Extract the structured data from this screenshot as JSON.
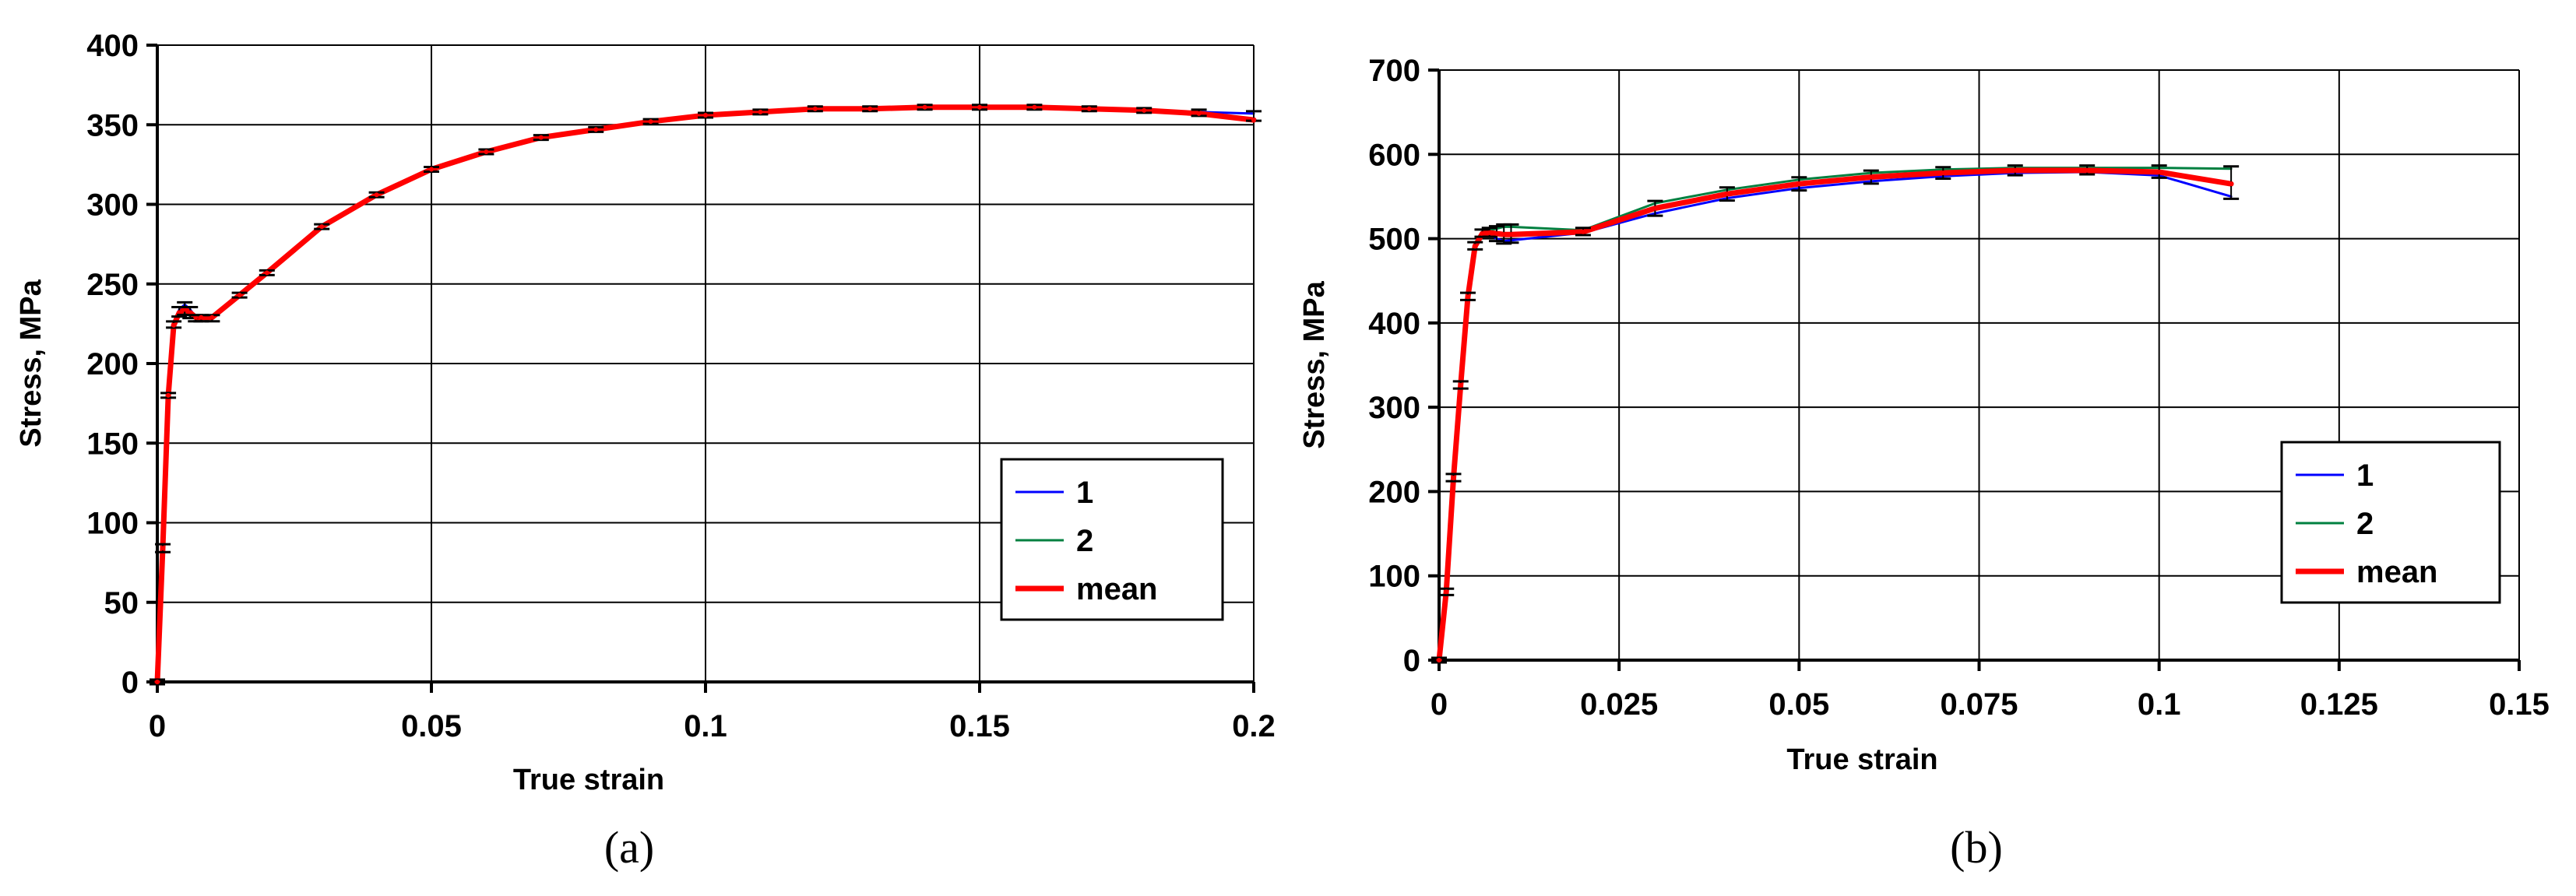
{
  "chart_data": [
    {
      "type": "line",
      "panel_label": "(a)",
      "xlabel": "True strain",
      "ylabel": "Stress, MPa",
      "xlim": [
        0,
        0.2
      ],
      "ylim": [
        0,
        400
      ],
      "x_ticks": [
        0,
        0.05,
        0.1,
        0.15,
        0.2
      ],
      "x_tick_labels": [
        "0",
        "0.05",
        "0.1",
        "0.15",
        "0.2"
      ],
      "y_ticks": [
        0,
        50,
        100,
        150,
        200,
        250,
        300,
        350,
        400
      ],
      "y_tick_labels": [
        "0",
        "50",
        "100",
        "150",
        "200",
        "250",
        "300",
        "350",
        "400"
      ],
      "grid": true,
      "legend_position": "right",
      "series": [
        {
          "name": "1",
          "color": "#0000ff",
          "x": [
            0,
            0.001,
            0.002,
            0.003,
            0.004,
            0.005,
            0.006,
            0.007,
            0.008,
            0.01,
            0.015,
            0.02,
            0.03,
            0.04,
            0.05,
            0.06,
            0.07,
            0.08,
            0.09,
            0.1,
            0.11,
            0.12,
            0.13,
            0.14,
            0.15,
            0.16,
            0.17,
            0.18,
            0.19,
            0.2
          ],
          "y": [
            0,
            85,
            180,
            225,
            234,
            237,
            234,
            229,
            229,
            229,
            243,
            257,
            286,
            306,
            322,
            333,
            342,
            347,
            352,
            356,
            358,
            360,
            360,
            361,
            361,
            361,
            360,
            359,
            358,
            357
          ]
        },
        {
          "name": "2",
          "color": "#008040",
          "x": [
            0,
            0.001,
            0.002,
            0.003,
            0.004,
            0.005,
            0.006,
            0.007,
            0.008,
            0.01,
            0.015,
            0.02,
            0.03,
            0.04,
            0.05,
            0.06,
            0.07,
            0.08,
            0.09,
            0.1,
            0.11,
            0.12,
            0.13,
            0.14,
            0.15,
            0.16,
            0.17,
            0.18,
            0.19,
            0.2
          ],
          "y": [
            0,
            83,
            180,
            224,
            231,
            232,
            230,
            228,
            228,
            228,
            243,
            257,
            286,
            306,
            322,
            333,
            342,
            347,
            352,
            356,
            358,
            360,
            360,
            361,
            361,
            361,
            360,
            359,
            357,
            354
          ]
        },
        {
          "name": "mean",
          "color": "#ff0000",
          "x": [
            0,
            0.001,
            0.002,
            0.003,
            0.004,
            0.005,
            0.006,
            0.007,
            0.008,
            0.01,
            0.015,
            0.02,
            0.03,
            0.04,
            0.05,
            0.06,
            0.07,
            0.08,
            0.09,
            0.1,
            0.11,
            0.12,
            0.13,
            0.14,
            0.15,
            0.16,
            0.17,
            0.18,
            0.19,
            0.2
          ],
          "y": [
            0,
            84,
            180,
            224,
            232,
            234,
            232,
            229,
            229,
            229,
            243,
            257,
            286,
            306,
            322,
            333,
            342,
            347,
            352,
            356,
            358,
            360,
            360,
            361,
            361,
            361,
            360,
            359,
            357,
            353
          ]
        }
      ]
    },
    {
      "type": "line",
      "panel_label": "(b)",
      "xlabel": "True strain",
      "ylabel": "Stress, MPa",
      "xlim": [
        0,
        0.15
      ],
      "ylim": [
        0,
        700
      ],
      "x_ticks": [
        0,
        0.025,
        0.05,
        0.075,
        0.1,
        0.125,
        0.15
      ],
      "x_tick_labels": [
        "0",
        "0.025",
        "0.05",
        "0.075",
        "0.1",
        "0.125",
        "0.15"
      ],
      "y_ticks": [
        0,
        100,
        200,
        300,
        400,
        500,
        600,
        700
      ],
      "y_tick_labels": [
        "0",
        "100",
        "200",
        "300",
        "400",
        "500",
        "600",
        "700"
      ],
      "grid": true,
      "legend_position": "right",
      "series": [
        {
          "name": "1",
          "color": "#0000ff",
          "x": [
            0,
            0.001,
            0.002,
            0.003,
            0.004,
            0.005,
            0.006,
            0.007,
            0.008,
            0.009,
            0.01,
            0.02,
            0.03,
            0.04,
            0.05,
            0.06,
            0.07,
            0.08,
            0.09,
            0.1,
            0.11
          ],
          "y": [
            0,
            80,
            215,
            325,
            430,
            490,
            505,
            505,
            500,
            497,
            498,
            507,
            530,
            548,
            560,
            568,
            574,
            578,
            579,
            575,
            550
          ]
        },
        {
          "name": "2",
          "color": "#008040",
          "x": [
            0,
            0.001,
            0.002,
            0.003,
            0.004,
            0.005,
            0.006,
            0.007,
            0.008,
            0.009,
            0.01,
            0.02,
            0.03,
            0.04,
            0.05,
            0.06,
            0.07,
            0.08,
            0.09,
            0.1,
            0.11
          ],
          "y": [
            0,
            82,
            218,
            328,
            433,
            493,
            508,
            510,
            512,
            514,
            514,
            510,
            542,
            558,
            570,
            578,
            582,
            584,
            584,
            584,
            583
          ]
        },
        {
          "name": "mean",
          "color": "#ff0000",
          "x": [
            0,
            0.001,
            0.002,
            0.003,
            0.004,
            0.005,
            0.006,
            0.007,
            0.008,
            0.009,
            0.01,
            0.02,
            0.03,
            0.04,
            0.05,
            0.06,
            0.07,
            0.08,
            0.09,
            0.1,
            0.11
          ],
          "y": [
            0,
            81,
            216,
            326,
            431,
            491,
            506,
            507,
            506,
            505,
            505,
            508,
            536,
            553,
            565,
            573,
            578,
            581,
            581,
            579,
            565
          ]
        }
      ]
    }
  ]
}
